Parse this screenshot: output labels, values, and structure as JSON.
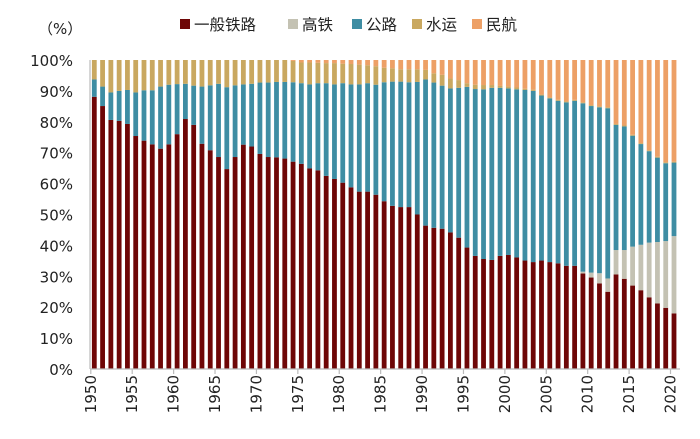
{
  "chart_data": {
    "type": "bar",
    "stacked": true,
    "ylabel": "（%）",
    "ylim": [
      0,
      100
    ],
    "yticks": [
      "0%",
      "10%",
      "20%",
      "30%",
      "40%",
      "50%",
      "60%",
      "70%",
      "80%",
      "90%",
      "100%"
    ],
    "xticks": [
      "1950",
      "1955",
      "1960",
      "1965",
      "1970",
      "1975",
      "1980",
      "1985",
      "1990",
      "1995",
      "2000",
      "2005",
      "2010",
      "2015",
      "2020"
    ],
    "legend_position": "top",
    "grid": false,
    "x_start": 1950,
    "x_end": 2020,
    "series": [
      {
        "name": "一般铁路",
        "color": "#6e0606",
        "values": [
          88.1,
          85.1,
          80.6,
          80.3,
          79.3,
          75.4,
          73.9,
          72.7,
          71.3,
          72.7,
          76,
          80.9,
          79,
          72.9,
          70.8,
          68.6,
          64.7,
          68.6,
          72.6,
          72,
          69.6,
          68.6,
          68.5,
          68.1,
          67.1,
          66.4,
          64.9,
          64.3,
          62.5,
          61.5,
          60.3,
          58.8,
          57.4,
          57.4,
          56.4,
          54.3,
          52.8,
          52.4,
          52.4,
          50,
          46.4,
          45.7,
          45.4,
          44.2,
          42.5,
          39.3,
          36.6,
          35.6,
          35.3,
          36.6,
          36.9,
          36.1,
          35.1,
          34.6,
          35.1,
          34.6,
          34.2,
          33.4,
          33.4,
          30.9,
          29.6,
          27.7,
          25,
          30.6,
          29.2,
          27,
          25.5,
          23.2,
          21.2,
          19.8,
          18
        ]
      },
      {
        "name": "高铁",
        "color": "#c4c2b3",
        "values": [
          0,
          0,
          0,
          0,
          0,
          0,
          0,
          0,
          0,
          0,
          0,
          0,
          0,
          0,
          0,
          0,
          0,
          0,
          0,
          0,
          0,
          0,
          0,
          0,
          0,
          0,
          0,
          0,
          0,
          0,
          0,
          0,
          0,
          0,
          0,
          0,
          0,
          0,
          0,
          0,
          0,
          0,
          0,
          0,
          0,
          0,
          0,
          0,
          0,
          0,
          0,
          0,
          0,
          0,
          0,
          0,
          0,
          0,
          0,
          0.6,
          1.6,
          3.3,
          4.3,
          7.9,
          9.3,
          12.6,
          14.7,
          17.7,
          19.9,
          21.6,
          25
        ]
      },
      {
        "name": "公路",
        "color": "#3e8da3",
        "values": [
          5.6,
          6.3,
          8.9,
          9.7,
          11,
          14.1,
          16.3,
          17.5,
          20.1,
          19.3,
          16.2,
          11.4,
          12.7,
          18.5,
          21,
          23.7,
          26.5,
          23.2,
          19.5,
          20.3,
          23.1,
          24.1,
          24.4,
          24.8,
          25.7,
          26.1,
          27.2,
          28.2,
          30,
          30.6,
          32.2,
          33.3,
          34.7,
          35.1,
          35.6,
          38.5,
          40.2,
          40.6,
          40.4,
          42.9,
          47.3,
          47,
          46.3,
          46.6,
          48.5,
          52,
          54,
          54.9,
          55.7,
          54.4,
          53.9,
          54.4,
          55.2,
          55.4,
          53.4,
          53,
          52.6,
          52.9,
          53.4,
          54.5,
          53.9,
          53.7,
          55.1,
          40.5,
          40,
          35.9,
          32.6,
          29.6,
          27.3,
          25.2,
          23.8
        ]
      },
      {
        "name": "水运",
        "color": "#c9a860",
        "values": [
          6.3,
          8.6,
          10.5,
          10,
          9.7,
          10.5,
          9.8,
          9.8,
          8.6,
          8,
          7.8,
          7.7,
          8.3,
          8.6,
          8.2,
          7.7,
          8.8,
          8.2,
          7.9,
          7.7,
          7.3,
          7.3,
          7.1,
          7.1,
          6.9,
          6.7,
          7.1,
          6.6,
          6.5,
          6.9,
          6.3,
          6.6,
          6.4,
          5.8,
          6,
          4.7,
          4.3,
          4,
          4.2,
          4.1,
          3.1,
          3,
          3.5,
          3.2,
          2.5,
          1.2,
          1.4,
          1.4,
          0.9,
          0.6,
          0.6,
          0.6,
          0.4,
          0.4,
          0.3,
          0.3,
          0.3,
          0.3,
          0.3,
          0.3,
          0.3,
          0.3,
          0.3,
          0.3,
          0.3,
          0.3,
          0.3,
          0.3,
          0.3,
          0.3,
          0.3
        ]
      },
      {
        "name": "民航",
        "color": "#eda066",
        "values": [
          0,
          0,
          0,
          0,
          0,
          0,
          0,
          0,
          0,
          0,
          0,
          0,
          0,
          0,
          0,
          0,
          0,
          0,
          0,
          0,
          0,
          0,
          0,
          0,
          0.3,
          0.8,
          0.8,
          0.9,
          1,
          1,
          1.2,
          1.3,
          1.5,
          1.7,
          2,
          2.5,
          2.7,
          3,
          3,
          3,
          3.2,
          4.3,
          4.8,
          6,
          6.5,
          7.5,
          8,
          8.1,
          8.1,
          8.4,
          8.6,
          8.9,
          9.3,
          9.6,
          11.2,
          12.1,
          12.9,
          13.4,
          12.9,
          13.7,
          14.6,
          15,
          15.3,
          20.7,
          21.2,
          24.2,
          26.9,
          29.2,
          31.3,
          33.1,
          32.9
        ]
      }
    ]
  }
}
